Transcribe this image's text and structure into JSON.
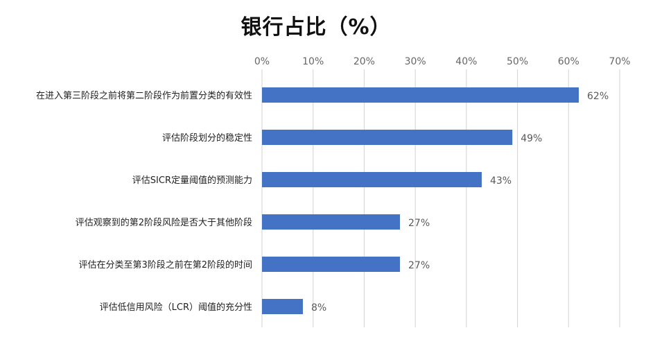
{
  "chart_data": {
    "type": "bar",
    "orientation": "horizontal",
    "title": "银行占比（%）",
    "categories": [
      "在进入第三阶段之前将第二阶段作为前置分类的有效性",
      "评估阶段划分的稳定性",
      "评估SICR定量阈值的预测能力",
      "评估观察到的第2阶段风险是否大于其他阶段",
      "评估在分类至第3阶段之前在第2阶段的时间",
      "评估低信用风险（LCR）阈值的充分性"
    ],
    "values": [
      62,
      49,
      43,
      27,
      27,
      8
    ],
    "value_labels": [
      "62%",
      "49%",
      "43%",
      "27%",
      "27%",
      "8%"
    ],
    "xlim": [
      0,
      70
    ],
    "x_ticks": [
      0,
      10,
      20,
      30,
      40,
      50,
      60,
      70
    ],
    "x_tick_labels": [
      "0%",
      "10%",
      "20%",
      "30%",
      "40%",
      "50%",
      "60%",
      "70%"
    ],
    "axis_position": "top",
    "grid": true,
    "legend": "none",
    "bar_color": "#4472C4",
    "grid_color": "#D9D9D9"
  }
}
